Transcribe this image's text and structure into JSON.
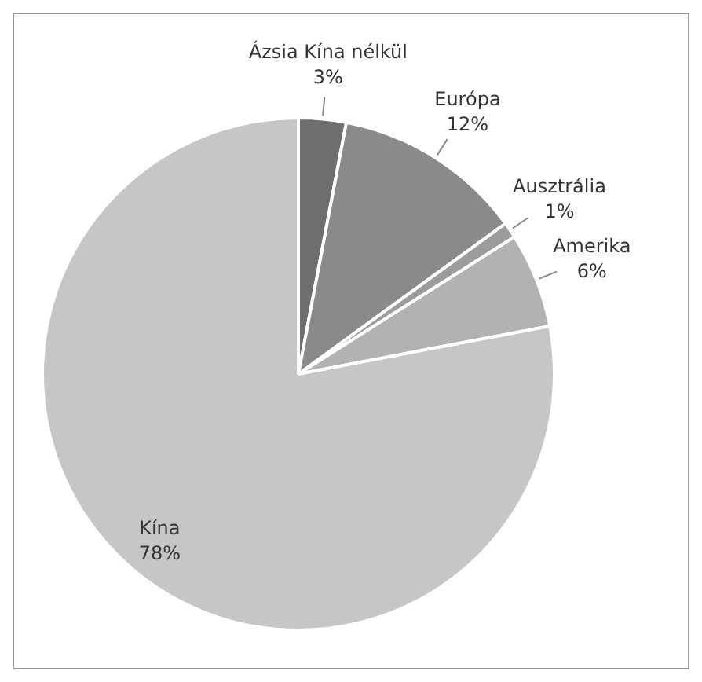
{
  "chart_data": {
    "type": "pie",
    "categories": [
      "Ázsia Kína nélkül",
      "Európa",
      "Ausztrália",
      "Amerika",
      "Kína"
    ],
    "values": [
      3,
      12,
      1,
      6,
      78
    ],
    "colors": [
      "#6e6e6e",
      "#8a8a8a",
      "#9c9c9c",
      "#b2b2b2",
      "#c6c6c6"
    ],
    "value_labels": [
      "3%",
      "12%",
      "1%",
      "6%",
      "78%"
    ],
    "legend": false
  }
}
